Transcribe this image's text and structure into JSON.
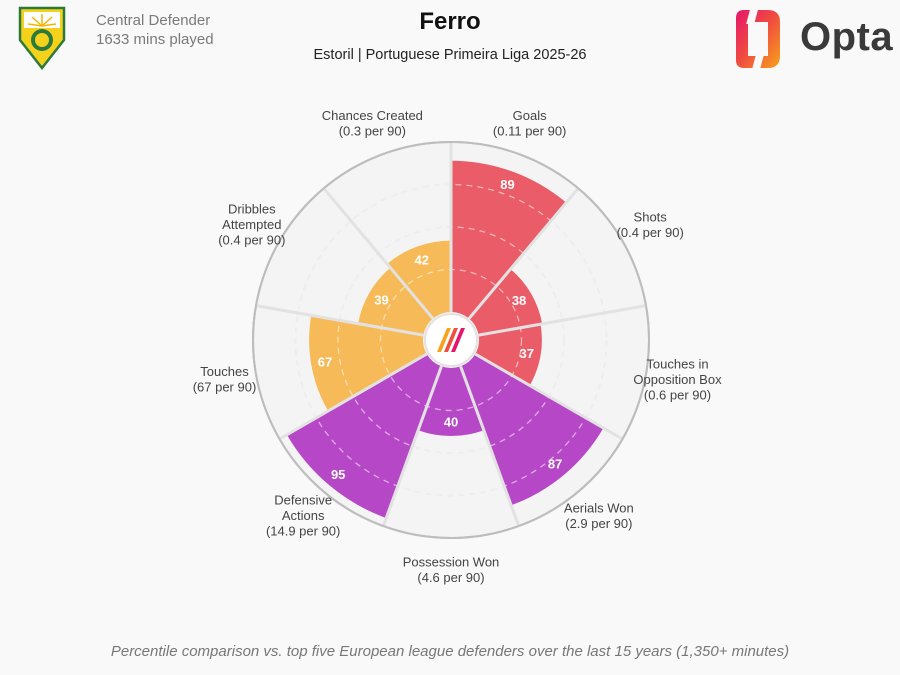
{
  "header": {
    "position": "Central Defender",
    "minutes": "1633 mins played",
    "player": "Ferro",
    "subtitle": "Estoril | Portuguese Primeira Liga 2025-26",
    "brand": "Opta"
  },
  "footnote": "Percentile comparison vs. top five European league defenders over the last 15 years (1,350+ minutes)",
  "colors": {
    "attack": "#e9535f",
    "possession": "#f5b74f",
    "defence": "#b23ec4",
    "background": "#f9f9f9",
    "ring": "#cfcfcf"
  },
  "chart_data": {
    "type": "polar-bar",
    "scale_max": 100,
    "metrics": [
      {
        "name": "Goals",
        "detail": "(0.11 per 90)",
        "percentile": 89,
        "group": "attack"
      },
      {
        "name": "Shots",
        "detail": "(0.4 per 90)",
        "percentile": 38,
        "group": "attack"
      },
      {
        "name": "Touches in Opposition Box",
        "detail": "(0.6 per 90)",
        "percentile": 37,
        "group": "attack"
      },
      {
        "name": "Aerials Won",
        "detail": "(2.9 per 90)",
        "percentile": 87,
        "group": "defence"
      },
      {
        "name": "Possession Won",
        "detail": "(4.6 per 90)",
        "percentile": 40,
        "group": "defence"
      },
      {
        "name": "Defensive Actions",
        "detail": "(14.9 per 90)",
        "percentile": 95,
        "group": "defence"
      },
      {
        "name": "Touches",
        "detail": "(67 per 90)",
        "percentile": 67,
        "group": "possession"
      },
      {
        "name": "Dribbles Attempted",
        "detail": "(0.4 per 90)",
        "percentile": 39,
        "group": "possession"
      },
      {
        "name": "Chances Created",
        "detail": "(0.3 per 90)",
        "percentile": 42,
        "group": "possession"
      }
    ]
  }
}
